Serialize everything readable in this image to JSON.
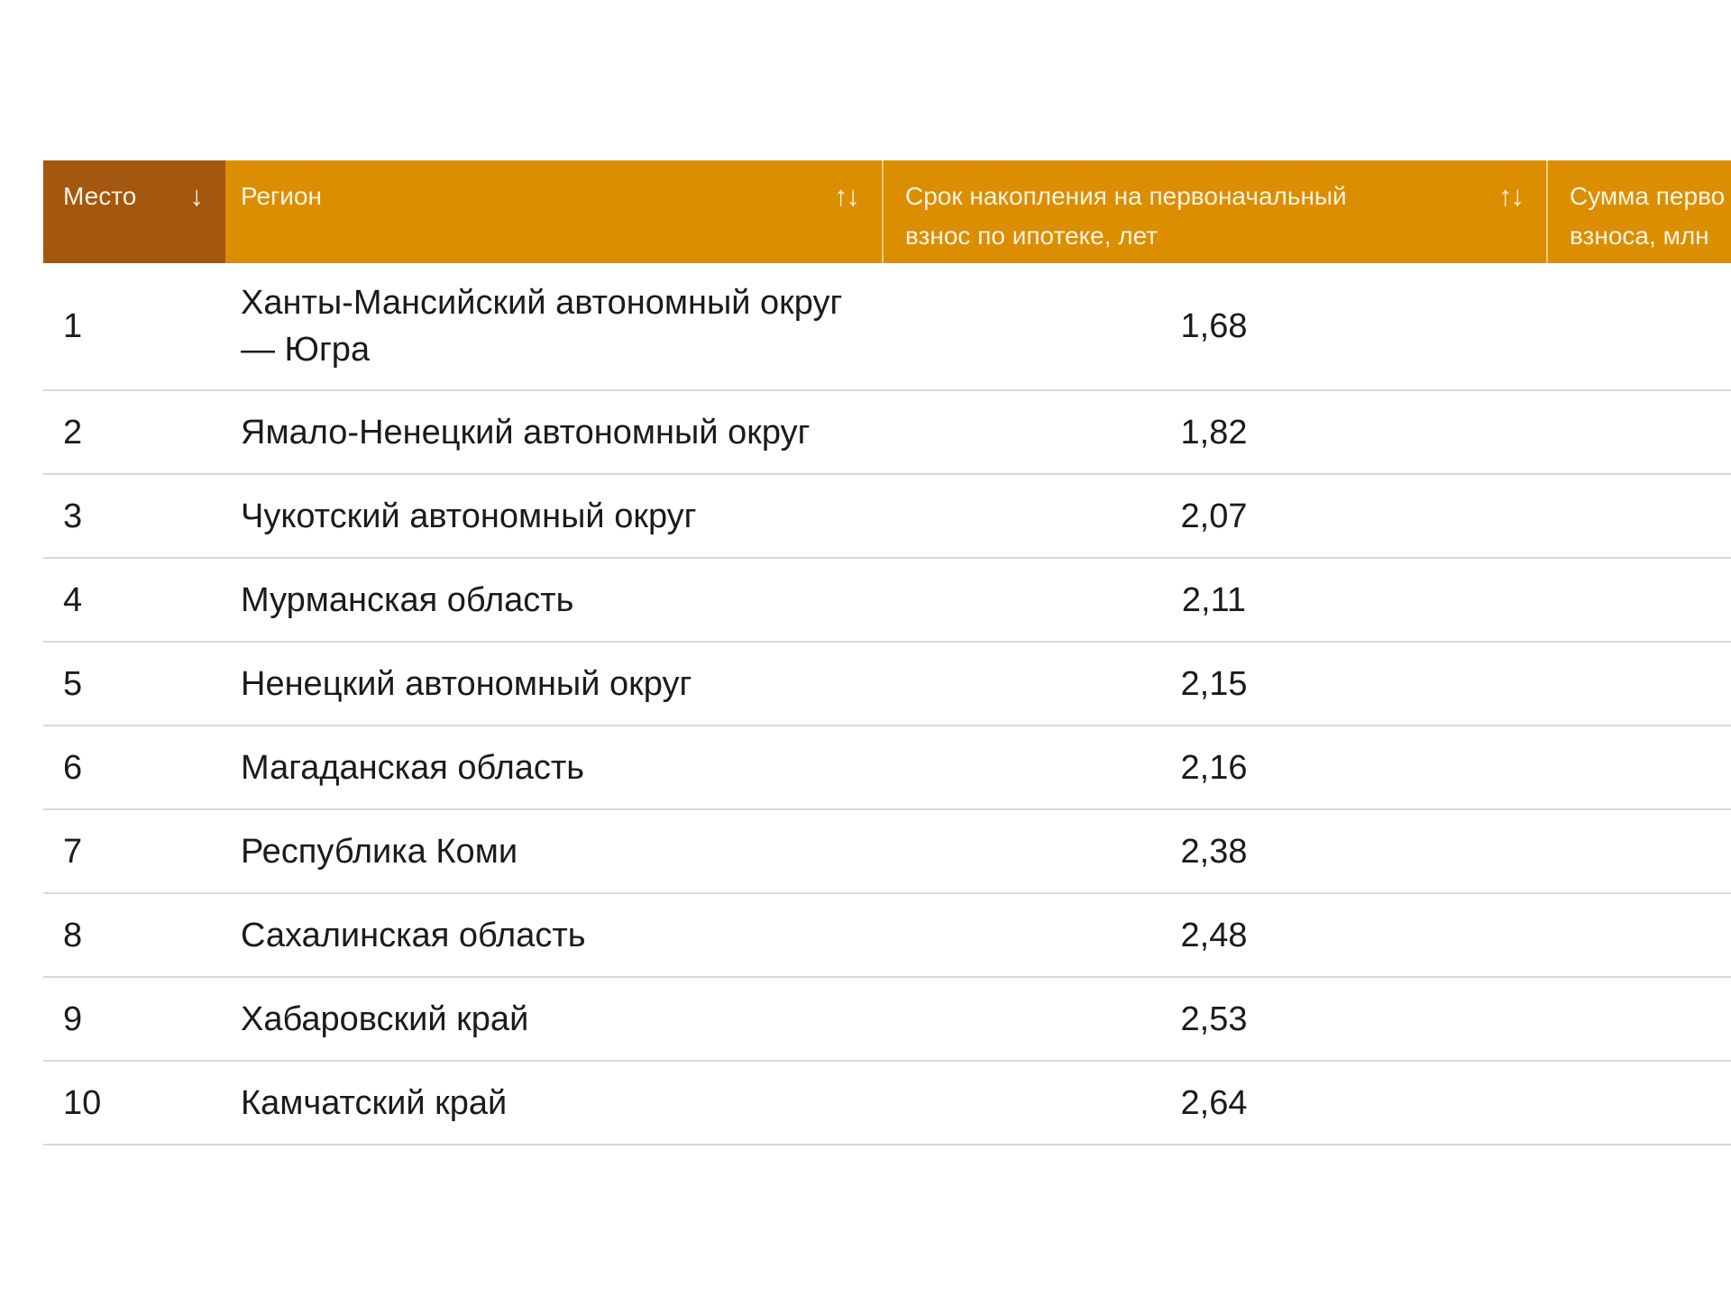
{
  "colors": {
    "header_primary_bg": "#A4570E",
    "header_bg": "#DB8E00",
    "header_text": "#FCF3E3",
    "header_divider": "rgba(255,248,235,0.55)",
    "row_separator": "#D8D8D8",
    "body_text": "#1B1B1B"
  },
  "table": {
    "columns": [
      {
        "key": "place",
        "label": "Место",
        "sort_icon": "↓"
      },
      {
        "key": "region",
        "label": "Регион",
        "sort_icon": "↑↓"
      },
      {
        "key": "term",
        "label_lines": [
          "Срок накопления на первоначальный",
          "взнос по ипотеке, лет"
        ],
        "sort_icon": "↑↓"
      },
      {
        "key": "sum",
        "label_lines": [
          "Сумма перво",
          "взноса, млн"
        ],
        "sort_icon": ""
      }
    ],
    "rows": [
      {
        "place": "1",
        "region": "Ханты-Мансийский автономный округ — Югра",
        "term": "1,68",
        "sum": ""
      },
      {
        "place": "2",
        "region": "Ямало-Ненецкий автономный округ",
        "term": "1,82",
        "sum": ""
      },
      {
        "place": "3",
        "region": "Чукотский автономный округ",
        "term": "2,07",
        "sum": ""
      },
      {
        "place": "4",
        "region": "Мурманская область",
        "term": "2,11",
        "sum": ""
      },
      {
        "place": "5",
        "region": "Ненецкий автономный округ",
        "term": "2,15",
        "sum": ""
      },
      {
        "place": "6",
        "region": "Магаданская область",
        "term": "2,16",
        "sum": ""
      },
      {
        "place": "7",
        "region": "Республика Коми",
        "term": "2,38",
        "sum": ""
      },
      {
        "place": "8",
        "region": "Сахалинская область",
        "term": "2,48",
        "sum": ""
      },
      {
        "place": "9",
        "region": "Хабаровский край",
        "term": "2,53",
        "sum": ""
      },
      {
        "place": "10",
        "region": "Камчатский край",
        "term": "2,64",
        "sum": ""
      }
    ]
  }
}
